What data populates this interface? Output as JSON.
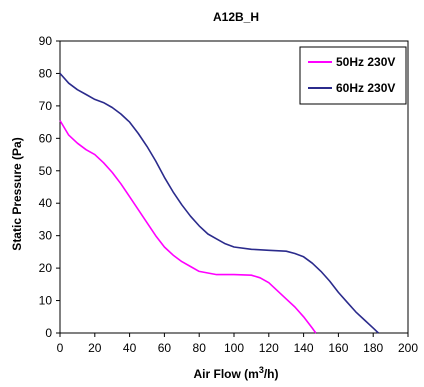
{
  "chart_data": {
    "type": "line",
    "title": "A12B_H",
    "xlabel": "Air Flow (m",
    "xlabel_sup": "3",
    "xlabel_tail": "/h)",
    "ylabel": "Static Pressure (Pa)",
    "xlim": [
      0,
      200
    ],
    "ylim": [
      0,
      90
    ],
    "xticks": [
      0,
      20,
      40,
      60,
      80,
      100,
      120,
      140,
      160,
      180,
      200
    ],
    "yticks": [
      0,
      10,
      20,
      30,
      40,
      50,
      60,
      70,
      80,
      90
    ],
    "grid": false,
    "legend_position": "top-right",
    "series": [
      {
        "name": "50Hz 230V",
        "color": "#ff00ff",
        "points": [
          [
            0,
            65.5
          ],
          [
            5,
            61
          ],
          [
            10,
            58.5
          ],
          [
            15,
            56.5
          ],
          [
            20,
            55
          ],
          [
            25,
            52.5
          ],
          [
            30,
            49.5
          ],
          [
            35,
            46
          ],
          [
            40,
            42
          ],
          [
            45,
            38
          ],
          [
            50,
            34
          ],
          [
            55,
            30
          ],
          [
            60,
            26.5
          ],
          [
            65,
            24
          ],
          [
            70,
            22
          ],
          [
            75,
            20.5
          ],
          [
            80,
            19
          ],
          [
            85,
            18.5
          ],
          [
            90,
            18
          ],
          [
            100,
            18
          ],
          [
            110,
            17.8
          ],
          [
            115,
            17
          ],
          [
            120,
            15.5
          ],
          [
            125,
            13
          ],
          [
            130,
            10.5
          ],
          [
            135,
            8
          ],
          [
            140,
            5
          ],
          [
            145,
            1.5
          ],
          [
            147,
            0
          ]
        ]
      },
      {
        "name": "60Hz 230V",
        "color": "#2b2b8c",
        "points": [
          [
            0,
            80
          ],
          [
            5,
            77
          ],
          [
            10,
            75
          ],
          [
            15,
            73.5
          ],
          [
            20,
            72
          ],
          [
            25,
            71
          ],
          [
            30,
            69.5
          ],
          [
            35,
            67.5
          ],
          [
            40,
            65
          ],
          [
            45,
            61.5
          ],
          [
            50,
            57.5
          ],
          [
            55,
            53
          ],
          [
            60,
            48
          ],
          [
            65,
            43.5
          ],
          [
            70,
            39.5
          ],
          [
            75,
            36
          ],
          [
            80,
            33
          ],
          [
            85,
            30.5
          ],
          [
            90,
            29
          ],
          [
            95,
            27.5
          ],
          [
            100,
            26.5
          ],
          [
            110,
            25.8
          ],
          [
            120,
            25.5
          ],
          [
            130,
            25.2
          ],
          [
            135,
            24.5
          ],
          [
            140,
            23.5
          ],
          [
            145,
            21.5
          ],
          [
            150,
            19
          ],
          [
            155,
            16
          ],
          [
            160,
            12.5
          ],
          [
            165,
            9.5
          ],
          [
            170,
            6.5
          ],
          [
            175,
            4
          ],
          [
            180,
            1.5
          ],
          [
            183,
            0
          ]
        ]
      }
    ]
  }
}
